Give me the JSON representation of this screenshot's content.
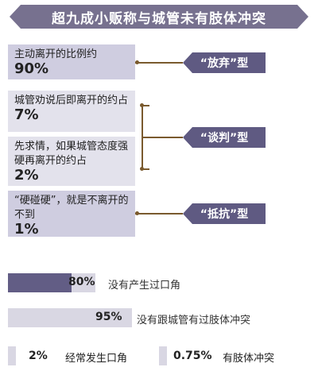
{
  "title": "超九成小贩称与城管未有肢体冲突",
  "chart_data": {
    "type": "infographic",
    "groups": [
      {
        "text": "主动离开的比例约",
        "value_label": "90%",
        "value": 90,
        "category": "“放弃”型"
      },
      {
        "text": "城管劝说后即离开的约占",
        "value_label": "7%",
        "value": 7,
        "category": "“谈判”型"
      },
      {
        "text": "先求情，如果城管态度强硬再离开的约占",
        "value_label": "2%",
        "value": 2,
        "category": "“谈判”型"
      },
      {
        "text": "“硬碰硬”，就是不离开的不到",
        "value_label": "1%",
        "value": 1,
        "category": "“抵抗”型"
      }
    ],
    "categories": [
      "“放弃”型",
      "“谈判”型",
      "“抵抗”型"
    ],
    "bars": [
      {
        "value": 80,
        "value_label": "80%",
        "label": "没有产生过口角"
      },
      {
        "value": 95,
        "value_label": "95%",
        "label": "没有跟城管有过肢体冲突"
      },
      {
        "value": 2,
        "value_label": "2%",
        "label": "经常发生口角"
      },
      {
        "value": 0.75,
        "value_label": "0.75%",
        "label": "有肢体冲突"
      }
    ]
  },
  "colors": {
    "banner": "#77718f",
    "tag": "#5f5a82",
    "box_light": "#e3e2ec",
    "box_dark": "#cfcde0",
    "bar_fill": "#625d85",
    "bar_track": "#d9d7e3",
    "connector": "#7a5a2e"
  }
}
